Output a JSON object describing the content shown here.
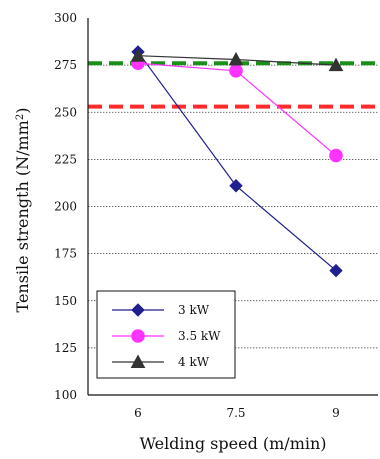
{
  "chart_data": {
    "type": "line",
    "title": "",
    "xlabel": "Welding speed (m/min)",
    "ylabel_text": "Tensile strength (N/mm",
    "ylabel_sup": "2",
    "ylabel_close": ")",
    "categories": [
      "6",
      "7.5",
      "9"
    ],
    "ylim": [
      100,
      300
    ],
    "yticks": [
      100,
      125,
      150,
      175,
      200,
      225,
      250,
      275,
      300
    ],
    "grid": true,
    "legend_position": "bottom-left",
    "series": [
      {
        "name": "3 kW",
        "color": "#1f1f8f",
        "marker": "diamond",
        "values": [
          282,
          211,
          166
        ]
      },
      {
        "name": "3.5 kW",
        "color": "#ff33ff",
        "marker": "circle",
        "values": [
          276,
          272,
          227
        ]
      },
      {
        "name": "4 kW",
        "color": "#333333",
        "marker": "triangle",
        "values": [
          280,
          278,
          275
        ]
      }
    ],
    "reference_lines": [
      {
        "value": 276,
        "color": "#1a8f1a"
      },
      {
        "value": 253,
        "color": "#ff2a2a"
      }
    ]
  }
}
